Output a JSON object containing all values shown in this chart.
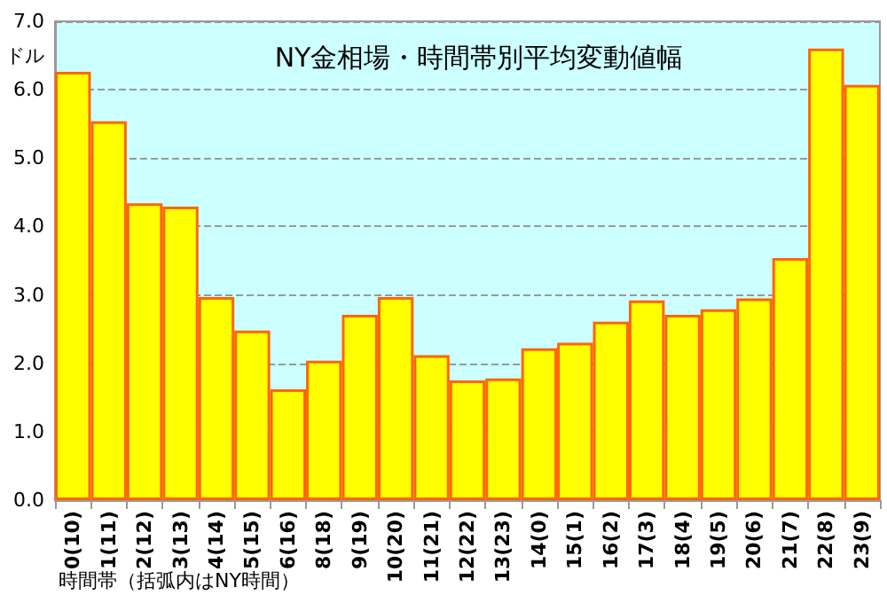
{
  "chart_data": {
    "type": "bar",
    "title": "NY金相場・時間帯別平均変動値幅",
    "ylabel": "ドル",
    "xlabel": "時間帯（括弧内はNY時間）",
    "categories": [
      "0(10)",
      "1(11)",
      "2(12)",
      "3(13)",
      "4(14)",
      "5(15)",
      "6(16)",
      "8(18)",
      "9(19)",
      "10(20)",
      "11(21)",
      "12(22)",
      "13(23)",
      "14(0)",
      "15(1)",
      "16(2)",
      "17(3)",
      "18(4)",
      "19(5)",
      "20(6)",
      "21(7)",
      "22(8)",
      "23(9)"
    ],
    "values": [
      6.26,
      5.54,
      4.34,
      4.29,
      2.97,
      2.48,
      1.62,
      2.04,
      2.71,
      2.97,
      2.12,
      1.75,
      1.78,
      2.22,
      2.3,
      2.61,
      2.92,
      2.71,
      2.79,
      2.95,
      3.54,
      6.6,
      6.07
    ],
    "color": "#ffff00",
    "ylim": [
      0,
      7
    ],
    "yticks": [
      {
        "value": 0,
        "label": "0.0"
      },
      {
        "value": 1,
        "label": "1.0"
      },
      {
        "value": 2,
        "label": "2.0"
      },
      {
        "value": 3,
        "label": "3.0"
      },
      {
        "value": 4,
        "label": "4.0"
      },
      {
        "value": 5,
        "label": "5.0"
      },
      {
        "value": 6,
        "label": "6.0"
      },
      {
        "value": 7,
        "label": "7.0"
      }
    ],
    "grid": "y"
  }
}
